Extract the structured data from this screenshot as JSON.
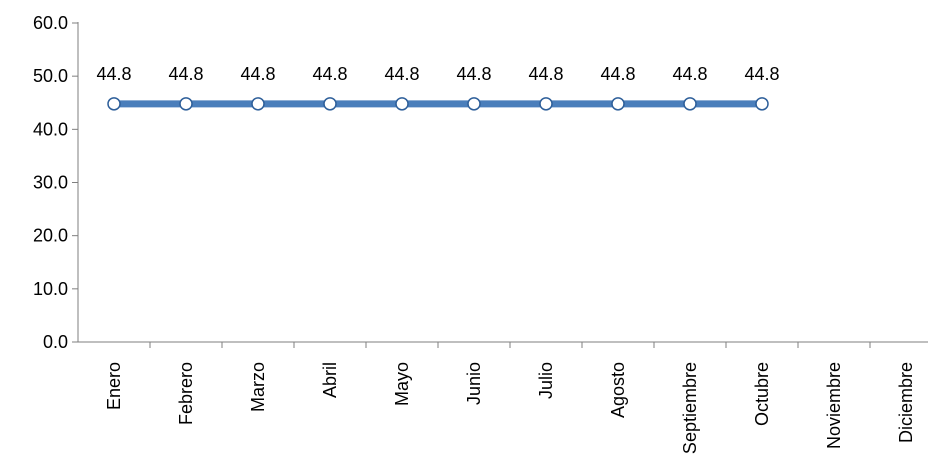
{
  "chart_data": {
    "type": "line",
    "categories": [
      "Enero",
      "Febrero",
      "Marzo",
      "Abril",
      "Mayo",
      "Junio",
      "Julio",
      "Agosto",
      "Septiembre",
      "Octubre",
      "Noviembre",
      "Diciembre"
    ],
    "series": [
      {
        "values": [
          44.8,
          44.8,
          44.8,
          44.8,
          44.8,
          44.8,
          44.8,
          44.8,
          44.8,
          44.8,
          null,
          null
        ],
        "data_labels": [
          "44.8",
          "44.8",
          "44.8",
          "44.8",
          "44.8",
          "44.8",
          "44.8",
          "44.8",
          "44.8",
          "44.8"
        ],
        "color": "#4a7ebb"
      }
    ],
    "ylim": [
      0,
      60
    ],
    "yticks": [
      "0.0",
      "10.0",
      "20.0",
      "30.0",
      "40.0",
      "50.0",
      "60.0"
    ],
    "xlabel": "",
    "ylabel": "",
    "grid": false,
    "legend": "none"
  }
}
